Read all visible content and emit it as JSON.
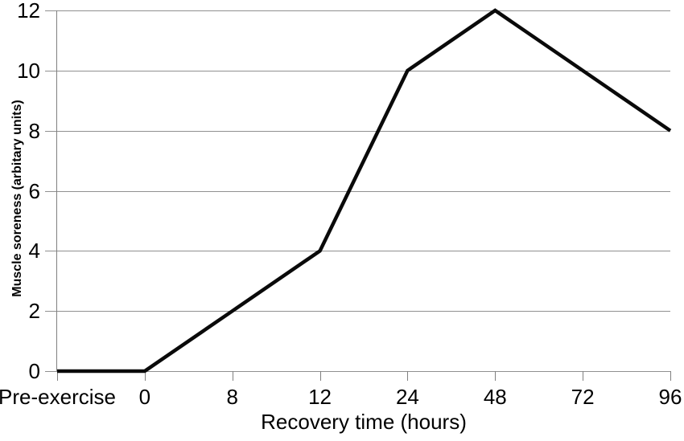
{
  "chart_data": {
    "type": "line",
    "categories": [
      "Pre-exercise",
      "0",
      "8",
      "12",
      "24",
      "48",
      "72",
      "96"
    ],
    "values": [
      0,
      0,
      2,
      4,
      10,
      12,
      10,
      8
    ],
    "series": [
      {
        "name": "Muscle soreness",
        "values": [
          0,
          0,
          2,
          4,
          10,
          12,
          10,
          8
        ]
      }
    ],
    "title": "",
    "xlabel": "Recovery time (hours)",
    "ylabel": "Muscle soreness (arbitary units)",
    "ylim": [
      0,
      12
    ],
    "yticks": [
      0,
      2,
      4,
      6,
      8,
      10,
      12
    ],
    "grid": "horizontal",
    "legend": "none",
    "colors": {
      "line": "#0a0a0a",
      "grid": "#909090",
      "axis": "#808080",
      "text": "#000000",
      "background": "#ffffff"
    }
  }
}
